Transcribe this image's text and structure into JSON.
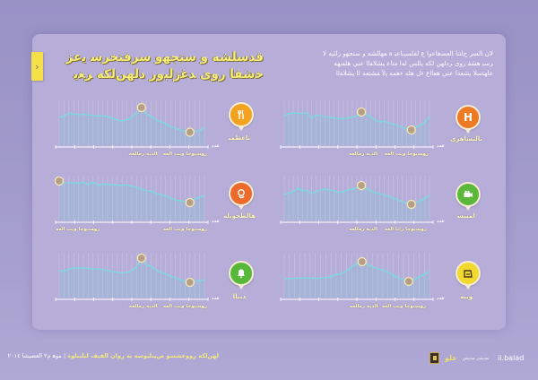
{
  "header": {
    "title_line1": "ﻗﺪﺳﻠﺸﻪ ﻭ ﺳﺘﺠﻬﻭ ﺳﺮﻓﺘﺨﺮﺳ ﻳﻋﺰ",
    "title_line2": "ﺧﺷﻔﺎ ﺭﻭﻯ ﺪﻏﺯﻟﺒﻭﺭ ﺩﻟﻬﻦﻟﻜﻪ ﺮﻐﻳ",
    "tab_icon": "›",
    "description": "ﻻﻥ ﺎﻟﺴﺮ ﺡﺎﺘﻨﺍ ﺎﻟﻌﻀﻫﺎﻋﻭﺍ ﻉ ﻟﻘﺎﺴﻴﺑﺎﻋﺒ ﺓ ﻌﻬﺎﻠﺸﻪ ﻭ ﺳﺘﺠﻬﻭ ﺭﺍﺌﻴﻪ ﻟﺎ ﺮﺳﺒ ﻫﺸﻘ ﺭﻭﻯ ﺮﺩﻟﻬﻦ ﻟﻜﻪ ﻳﺎﻠﺲ ﻟﻪﺍ ﻣﺘﺍﻋ ﻴﺸﻠﺎﻔﻟﺍ ﻋﻨﻲ ﻫﻠﻔﻳﻬﻪ ﻋﺎﻬﺘﺳﻠﺎ ﻳﺸﻌﺔﺍ ﻋﻨﻲ ﻫﻌﺎﺍﻉ ﺀﻝ ﻫﻠﻪ ﺀﻫﻤﻪ ﻳﻵ ﻘﺸﺘﻌﻪ ﻟﺍ ﻳﺸﻠﺎﻔﻟﺍ"
  },
  "chart_data": [
    {
      "type": "area",
      "name": "restaurants",
      "label": "ﻧﺎﻋﻄﻤﺒ",
      "icon": "fork-knife-icon",
      "color": "#f2a21e",
      "y_unit": "ﻋﺪﺩ",
      "values": [
        62,
        64,
        72,
        70,
        68,
        70,
        67,
        66,
        65,
        66,
        64,
        60,
        56,
        54,
        57,
        62,
        72,
        84,
        70,
        64,
        57,
        52,
        48,
        42,
        38,
        34,
        31,
        29,
        30,
        33,
        39
      ],
      "peak_index": 17,
      "trough_index": 27,
      "annotations": [
        "ﺎﻟﺪﻳﺔ ﺭﻣﺎﻠﻌﻪ",
        "ﺭﻮﺴﻳﻮﺟﺎ ﻭﻳﺐ ﺍﻟﻌﻪ"
      ],
      "ylim": [
        0,
        100
      ]
    },
    {
      "type": "area",
      "name": "hotels",
      "label": "ﻧﺎﻟﺘﺴﺎﻫﺮﻯ",
      "icon": "letter-h-icon",
      "color": "#ee7a24",
      "y_unit": "ﻋﺪﺩ",
      "values": [
        66,
        70,
        72,
        71,
        71,
        72,
        60,
        67,
        66,
        62,
        63,
        60,
        60,
        59,
        61,
        62,
        66,
        74,
        70,
        64,
        56,
        52,
        54,
        50,
        47,
        44,
        40,
        36,
        34,
        41,
        44,
        52,
        64
      ],
      "peak_index": 17,
      "trough_index": 28,
      "annotations": [
        "ﺎﻟﺪﻳﺔ ﺭﻣﺎﻠﻌﻪ",
        "ﺭﻮﺴﻳﻮﺟﺎ ﻭﻳﺐ ﺍﻟﻌﻪ"
      ],
      "ylim": [
        0,
        100
      ]
    },
    {
      "type": "area",
      "name": "beauty-salons",
      "label": "ﻫﺎﻟﻄﺨﻮﻳﻟﻪ",
      "icon": "face-profile-icon",
      "color": "#ec6a2c",
      "y_unit": "ﻋﺪﺩ",
      "values": [
        88,
        84,
        84,
        84,
        82,
        86,
        80,
        86,
        78,
        82,
        80,
        80,
        79,
        78,
        80,
        76,
        74,
        70,
        66,
        66,
        60,
        58,
        54,
        50,
        46,
        44,
        42,
        40,
        48,
        52,
        56
      ],
      "peak_index": 0,
      "trough_index": 27,
      "annotations": [
        "ﺭﻮﺴﻳﻮﺟﺎ ﻭﻳﺐ ﺍﻟﻌﻪ",
        "ﺭﻮﺴﻳﻮﺟﺎ ﻭﻳﺐ ﺍﻟﻌﻪ"
      ],
      "annotation_positions": [
        "left",
        "right"
      ],
      "ylim": [
        0,
        100
      ]
    },
    {
      "type": "area",
      "name": "cinemas",
      "label": "ﺍﻤﻨﻴﺴ",
      "icon": "video-camera-icon",
      "color": "#5cb83a",
      "y_unit": "ﻋﺪﺩ",
      "values": [
        58,
        62,
        64,
        72,
        66,
        68,
        60,
        64,
        68,
        70,
        68,
        66,
        62,
        64,
        68,
        70,
        74,
        78,
        72,
        66,
        62,
        60,
        56,
        54,
        50,
        46,
        42,
        38,
        36,
        40,
        44,
        50,
        56
      ],
      "peak_index": 17,
      "trough_index": 28,
      "annotations": [
        "ﺎﻟﺪﻳﺔ ﺭﻣﺎﻠﻌﻪ",
        "ﺭﻮﺴﻳﻮﺟﺎ ﺭﺍﻳﺎ ﺍﻟﻌﻪ"
      ],
      "ylim": [
        0,
        100
      ]
    },
    {
      "type": "area",
      "name": "events",
      "label": "ﺪﺒﻳﺎﺎ",
      "icon": "bell-icon",
      "color": "#58b83a",
      "y_unit": "ﻋﺪﺩ",
      "values": [
        60,
        58,
        64,
        66,
        66,
        66,
        65,
        63,
        64,
        62,
        60,
        58,
        56,
        55,
        56,
        60,
        68,
        88,
        72,
        70,
        62,
        56,
        52,
        48,
        44,
        40,
        36,
        34,
        36,
        38,
        40
      ],
      "peak_index": 17,
      "trough_index": 27,
      "annotations": [
        "ﺎﻟﺪﻳﺔ ﺭﻣﺎﻠﻌﻪ",
        "ﺭﻮﺴﻳﻮﺟﺎ ﻭﻳﺐ ﺍﻟﻌﻪ"
      ],
      "ylim": [
        0,
        100
      ]
    },
    {
      "type": "area",
      "name": "shopping",
      "label": "ﻮﻳﻨﻪ",
      "icon": "shopping-bag-icon",
      "color": "#f3d92e",
      "y_unit": "ﻋﺪﺩ",
      "values": [
        42,
        42,
        43,
        43,
        44,
        44,
        42,
        44,
        44,
        46,
        52,
        52,
        60,
        68,
        76,
        80,
        74,
        68,
        64,
        62,
        56,
        50,
        44,
        40,
        36,
        40,
        46,
        52,
        58
      ],
      "peak_index": 15,
      "trough_index": 24,
      "annotations": [
        "ﺎﻟﺪﻳﺔ ﺭﻣﺎﻠﻌﻪ",
        "ﺭﻮﺴﻳﻮﺟﺎ ﻭﻳﺐ ﺍﻟﻌﻪ"
      ],
      "ylim": [
        0,
        100
      ]
    }
  ],
  "footer": {
    "source": "ﻣﻮﻫ ﻡ٢ ﺍﻟﻌﺼﻴﺸﺎ ٢٠١٤",
    "separator": "|",
    "highlight": "ﻟﻬﻦﻟﻜﻪ ﺭﻭﻭﻋﺸﺴﻮ ﺹﻴﺒﻟﻴﻮﺳﻪ ﻳﻪ ﺭﻭﺍﻥ ﺍﻟﻘﻴﻒ ﻟﻴﻠﻴﺒﻠﻮﺓ",
    "brand_arabic": "ﻋﻠﻮ",
    "brand_small": "ﻣﺪﻳﻨﺘﻲ ﻣﺪﻳﻨﺘﻲ",
    "brand_latin": "ii.balad"
  }
}
